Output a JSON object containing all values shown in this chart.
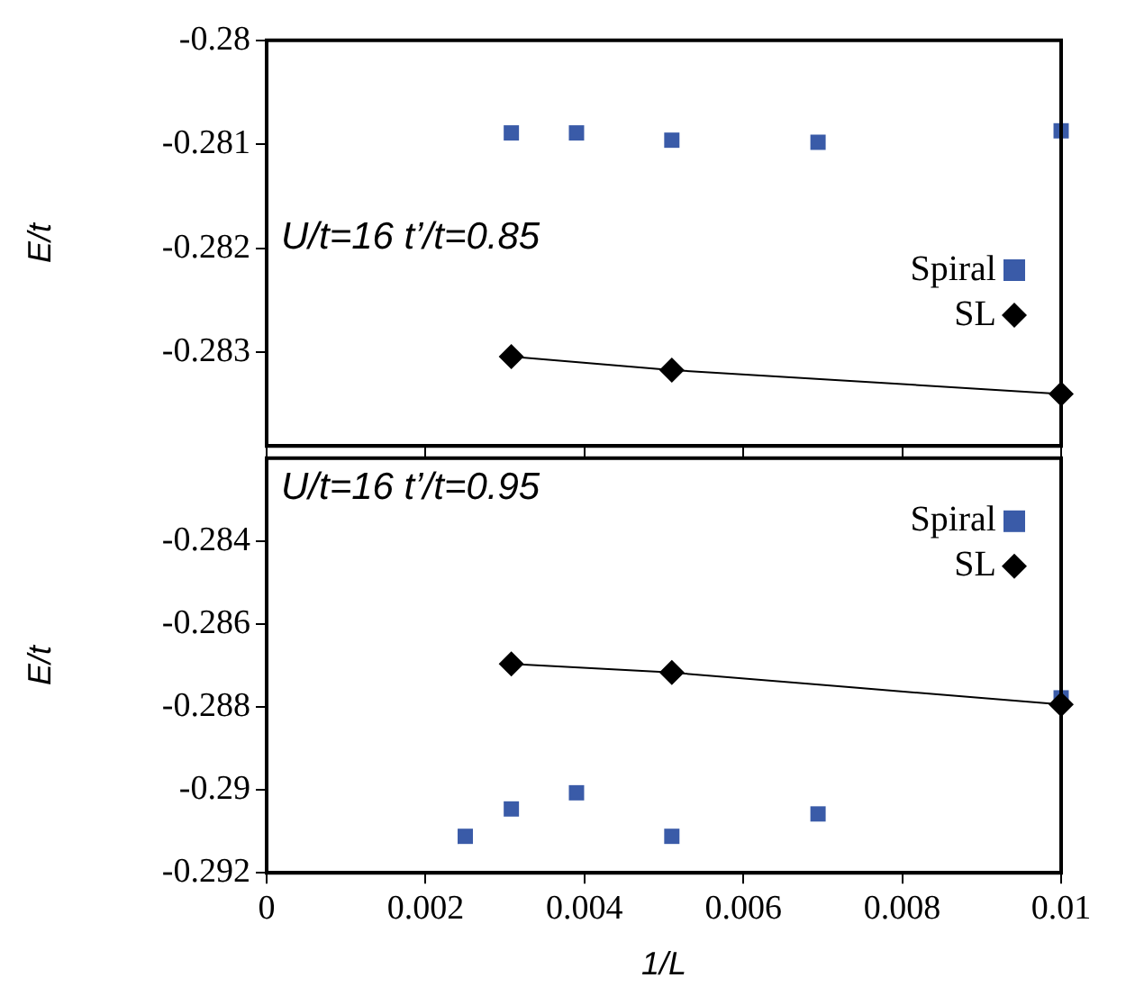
{
  "chart_data": [
    {
      "type": "scatter",
      "ylabel": "E/t",
      "annotations": [
        "U/t=16 t’/t=0.85"
      ],
      "xlim": [
        0,
        0.01
      ],
      "xticks": [
        0,
        0.002,
        0.004,
        0.006,
        0.008,
        0.01
      ],
      "ylim": [
        -0.2839,
        -0.28
      ],
      "yticks": [
        -0.28,
        -0.281,
        -0.282,
        -0.283
      ],
      "tick_labels": "y",
      "grid": false,
      "legend": "right",
      "series": [
        {
          "name": "Spiral",
          "type": "scatter",
          "marker": "square",
          "color": "#3a5ba8",
          "x": [
            0.00308,
            0.0039,
            0.0051,
            0.00694,
            0.01
          ],
          "values": [
            -0.28089,
            -0.28089,
            -0.28096,
            -0.28098,
            -0.28087
          ]
        },
        {
          "name": "SL",
          "type": "line",
          "marker": "diamond",
          "color": "#000000",
          "x": [
            0.00308,
            0.0051,
            0.01
          ],
          "values": [
            -0.28304,
            -0.28317,
            -0.2834
          ]
        }
      ]
    },
    {
      "type": "scatter",
      "xlabel": "1/L",
      "ylabel": "E/t",
      "annotations": [
        "U/t=16 t’/t=0.95"
      ],
      "xlim": [
        0,
        0.01
      ],
      "xticks": [
        0,
        0.002,
        0.004,
        0.006,
        0.008,
        0.01
      ],
      "ylim": [
        -0.292,
        -0.282
      ],
      "yticks": [
        -0.284,
        -0.286,
        -0.288,
        -0.29,
        -0.292
      ],
      "grid": false,
      "legend": "top right",
      "series": [
        {
          "name": "Spiral",
          "type": "scatter",
          "marker": "square",
          "color": "#3a5ba8",
          "x": [
            0.0025,
            0.00308,
            0.0039,
            0.0051,
            0.00694,
            0.01
          ],
          "values": [
            -0.29112,
            -0.29046,
            -0.29007,
            -0.29112,
            -0.29058,
            -0.28778
          ]
        },
        {
          "name": "SL",
          "type": "line",
          "marker": "diamond",
          "color": "#000000",
          "x": [
            0.00308,
            0.0051,
            0.01
          ],
          "values": [
            -0.28696,
            -0.28717,
            -0.28794
          ]
        }
      ]
    }
  ]
}
